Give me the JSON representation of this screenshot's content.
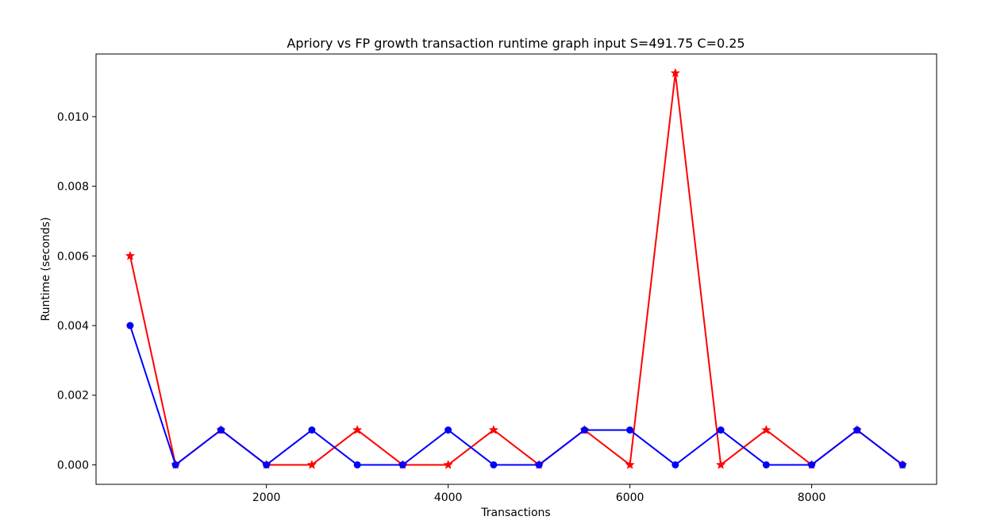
{
  "chart_data": {
    "type": "line",
    "title": "Apriory vs FP growth transaction runtime graph input S=491.75 C=0.25",
    "xlabel": "Transactions",
    "ylabel": "Runtime (seconds)",
    "xlim": [
      125,
      9375
    ],
    "ylim": [
      -0.00056,
      0.0118
    ],
    "xticks": [
      2000,
      4000,
      6000,
      8000
    ],
    "xtick_labels": [
      "2000",
      "4000",
      "6000",
      "8000"
    ],
    "yticks": [
      0,
      0.002,
      0.004,
      0.006,
      0.008,
      0.01
    ],
    "ytick_labels": [
      "0.000",
      "0.002",
      "0.004",
      "0.006",
      "0.008",
      "0.010"
    ],
    "grid": false,
    "legend": "none",
    "x": [
      500,
      1000,
      1500,
      2000,
      2500,
      3000,
      3500,
      4000,
      4500,
      5000,
      5500,
      6000,
      6500,
      7000,
      7500,
      8000,
      8500,
      9000
    ],
    "series": [
      {
        "color": "#ff0000",
        "marker": "star",
        "values": [
          0.006,
          0,
          0.001,
          0,
          0,
          0.001,
          0,
          0,
          0.001,
          0,
          0.001,
          0,
          0.01125,
          0,
          0.001,
          0,
          0.001,
          0
        ]
      },
      {
        "color": "#0000ff",
        "marker": "circle",
        "values": [
          0.004,
          0,
          0.001,
          0,
          0.001,
          0,
          0,
          0.001,
          0,
          0,
          0.001,
          0.001,
          0,
          0.001,
          0,
          0,
          0.001,
          0
        ]
      }
    ]
  }
}
